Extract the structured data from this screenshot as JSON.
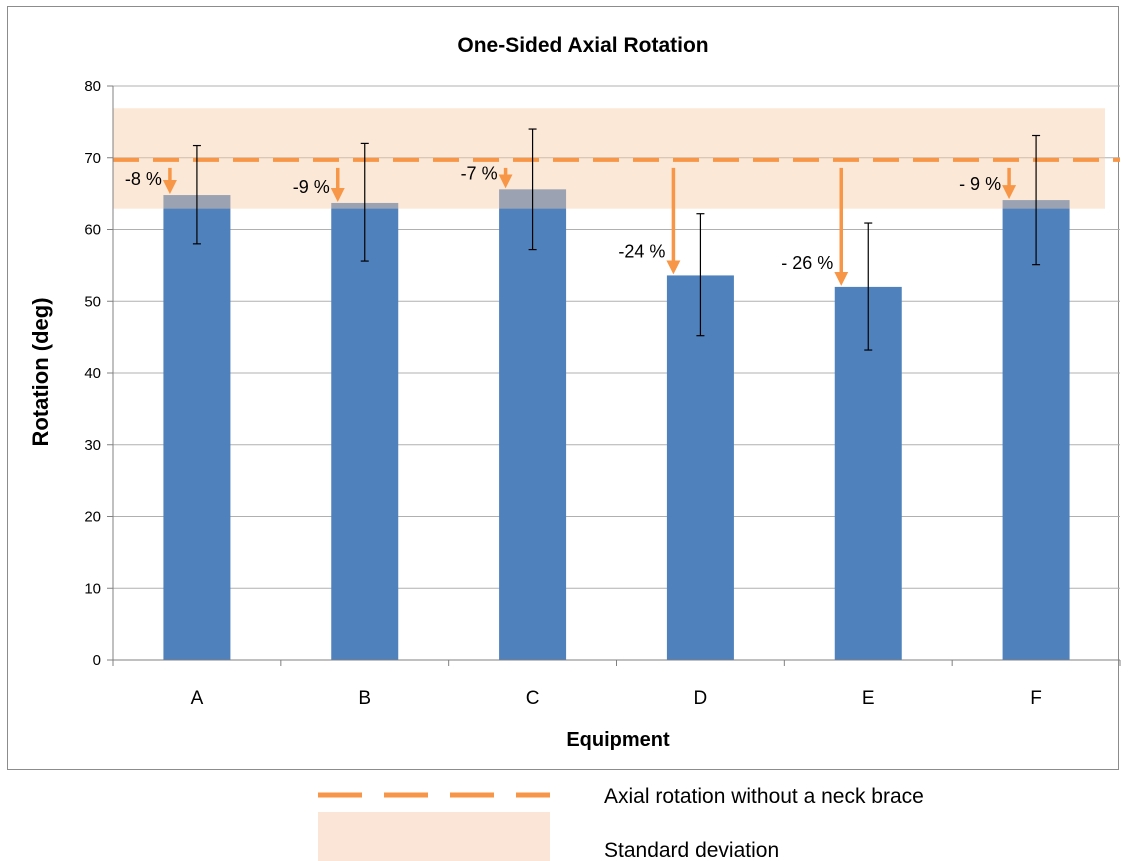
{
  "chart_data": {
    "type": "bar",
    "title": "One-Sided Axial Rotation",
    "xlabel": "Equipment",
    "ylabel": "Rotation (deg)",
    "ylim": [
      0,
      80
    ],
    "yticks": [
      0,
      10,
      20,
      30,
      40,
      50,
      60,
      70,
      80
    ],
    "categories": [
      "A",
      "B",
      "C",
      "D",
      "E",
      "F"
    ],
    "values": [
      64.8,
      63.7,
      65.6,
      53.6,
      52.0,
      64.1
    ],
    "error_bars": [
      {
        "low": 58.0,
        "high": 71.7
      },
      {
        "low": 55.6,
        "high": 72.0
      },
      {
        "low": 57.2,
        "high": 74.0
      },
      {
        "low": 45.2,
        "high": 62.2
      },
      {
        "low": 43.2,
        "high": 60.9
      },
      {
        "low": 55.1,
        "high": 73.1
      }
    ],
    "reference": {
      "label": "Axial rotation without a neck brace",
      "value": 69.7
    },
    "band": {
      "label": "Standard deviation",
      "low": 62.9,
      "high": 76.9
    },
    "annotations": [
      "-8 %",
      "-9 %",
      "-7 %",
      "-24 %",
      "- 26 %",
      "- 9 %"
    ],
    "colors": {
      "bar": "#4f81bd",
      "reference": "#f79646",
      "band": "#fbe5d6",
      "arrow": "#f79646",
      "grid": "#b0b0b0"
    },
    "grid": true,
    "legend_position": "bottom"
  }
}
